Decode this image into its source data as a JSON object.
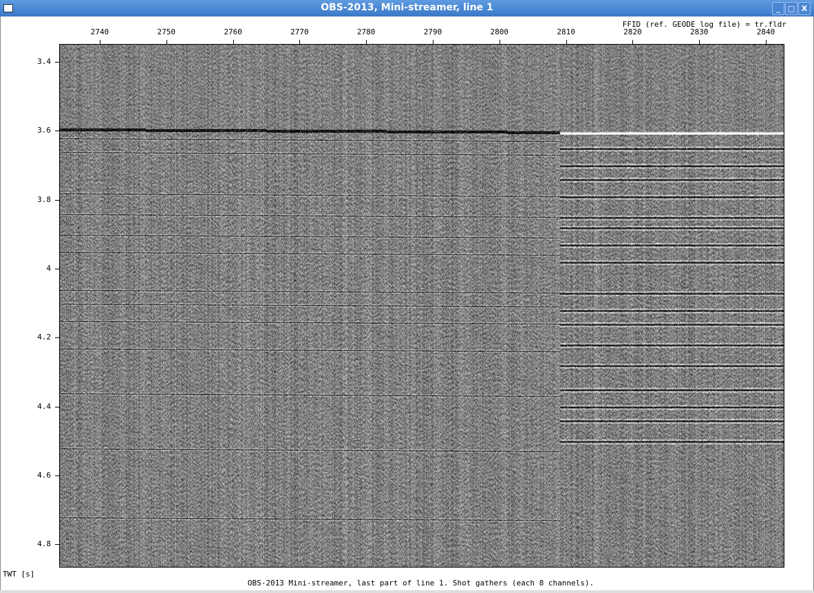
{
  "window": {
    "title": "OBS-2013, Mini-streamer, line 1",
    "buttons": {
      "minimize": "_",
      "maximize": "□",
      "close": "X"
    }
  },
  "chart_data": {
    "type": "heatmap",
    "subtype": "seismic variable-density section (grayscale)",
    "title": "OBS-2013 Mini-streamer, last part of line 1. Shot gathers (each 8 channels).",
    "xlabel": "FFID (ref. GEODE log file) = tr.fldr",
    "ylabel": "TWT [s]",
    "x_axis_position": "top",
    "xlim": [
      2734,
      2843
    ],
    "ylim": [
      4.87,
      3.35
    ],
    "y_inverted": true,
    "x_ticks": [
      "2740",
      "2750",
      "2760",
      "2770",
      "2780",
      "2790",
      "2800",
      "2810",
      "2820",
      "2830",
      "2840"
    ],
    "y_ticks": [
      "3.4",
      "3.6",
      "3.8",
      "4",
      "4.2",
      "4.4",
      "4.6",
      "4.8"
    ],
    "seafloor_twt_s": 3.59,
    "colors": {
      "positive": "#000000",
      "negative": "#ffffff",
      "background": "#808080"
    }
  }
}
